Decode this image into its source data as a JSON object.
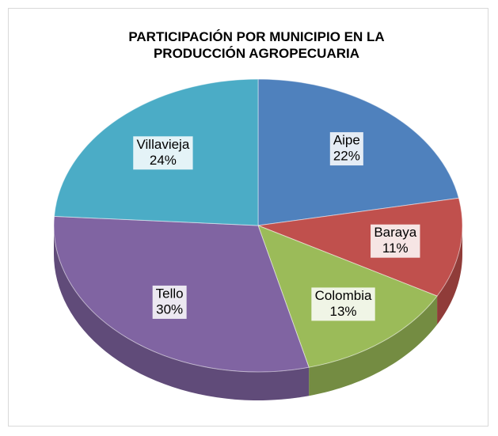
{
  "chart_data": {
    "type": "pie",
    "title": "PARTICIPACIÓN POR MUNICIPIO EN LA PRODUCCIÓN AGROPECUARIA",
    "categories": [
      "Aipe",
      "Baraya",
      "Colombia",
      "Tello",
      "Villavieja"
    ],
    "values": [
      22,
      11,
      13,
      30,
      24
    ],
    "value_labels": [
      "22%",
      "11%",
      "13%",
      "30%",
      "24%"
    ],
    "colors": [
      "#4f81bd",
      "#c0504d",
      "#9bbb59",
      "#8064a2",
      "#4bacc6"
    ]
  }
}
